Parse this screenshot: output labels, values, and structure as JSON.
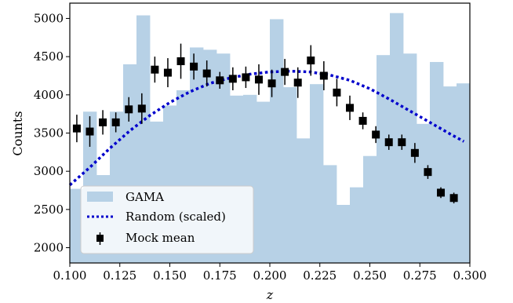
{
  "chart_data": {
    "type": "bar",
    "xlabel": "z",
    "ylabel": "Counts",
    "xlim": [
      0.1,
      0.3
    ],
    "ylim": [
      1800,
      5200
    ],
    "xticks": [
      "0.100",
      "0.125",
      "0.150",
      "0.175",
      "0.200",
      "0.225",
      "0.250",
      "0.275",
      "0.300"
    ],
    "yticks": [
      "2000",
      "2500",
      "3000",
      "3500",
      "4000",
      "4500",
      "5000"
    ],
    "grid": false,
    "legend_position": "lower-left",
    "legend": {
      "gama": "GAMA",
      "random": "Random (scaled)",
      "mock": "Mock mean"
    },
    "colors": {
      "gama": "#b7d1e6",
      "random": "#0000cc",
      "mock": "#000000"
    },
    "gama_hist": {
      "edges": [
        0.1,
        0.10667,
        0.11333,
        0.12,
        0.12667,
        0.13333,
        0.14,
        0.14667,
        0.15333,
        0.16,
        0.16667,
        0.17333,
        0.18,
        0.18667,
        0.19333,
        0.2,
        0.20667,
        0.21333,
        0.22,
        0.22667,
        0.23333,
        0.24,
        0.24667,
        0.25333,
        0.26,
        0.26667,
        0.27333,
        0.28,
        0.28667,
        0.29333,
        0.3
      ],
      "counts": [
        2770,
        3780,
        2950,
        3780,
        4400,
        5040,
        3650,
        3860,
        4060,
        4620,
        4590,
        4540,
        3990,
        4000,
        3910,
        4990,
        4100,
        3430,
        4140,
        3080,
        2560,
        2790,
        3200,
        4520,
        5070,
        4540,
        3620,
        4430,
        4110,
        4150
      ]
    },
    "random_scaled": {
      "x": [
        0.1,
        0.11,
        0.12,
        0.13,
        0.14,
        0.15,
        0.16,
        0.17,
        0.18,
        0.19,
        0.2,
        0.21,
        0.22,
        0.23,
        0.24,
        0.25,
        0.26,
        0.27,
        0.28,
        0.29,
        0.297
      ],
      "y": [
        2820,
        3050,
        3300,
        3530,
        3730,
        3900,
        4040,
        4150,
        4220,
        4270,
        4300,
        4310,
        4300,
        4260,
        4190,
        4080,
        3940,
        3790,
        3640,
        3490,
        3390
      ]
    },
    "mock_mean": {
      "x": [
        0.1035,
        0.11,
        0.1165,
        0.123,
        0.1295,
        0.136,
        0.1425,
        0.149,
        0.1555,
        0.162,
        0.1685,
        0.175,
        0.1815,
        0.188,
        0.1945,
        0.201,
        0.2075,
        0.214,
        0.2205,
        0.227,
        0.2335,
        0.24,
        0.2465,
        0.253,
        0.2595,
        0.266,
        0.2725,
        0.279,
        0.2855,
        0.292
      ],
      "y": [
        3560,
        3520,
        3640,
        3640,
        3810,
        3820,
        4330,
        4290,
        4440,
        4370,
        4280,
        4190,
        4210,
        4230,
        4200,
        4150,
        4300,
        4160,
        4450,
        4250,
        4030,
        3830,
        3660,
        3480,
        3380,
        3380,
        3240,
        2990,
        2720,
        2650
      ],
      "err": [
        180,
        200,
        160,
        130,
        160,
        200,
        170,
        190,
        230,
        170,
        170,
        110,
        150,
        140,
        200,
        180,
        170,
        200,
        200,
        190,
        180,
        160,
        110,
        110,
        100,
        100,
        130,
        90,
        70,
        70
      ]
    }
  }
}
